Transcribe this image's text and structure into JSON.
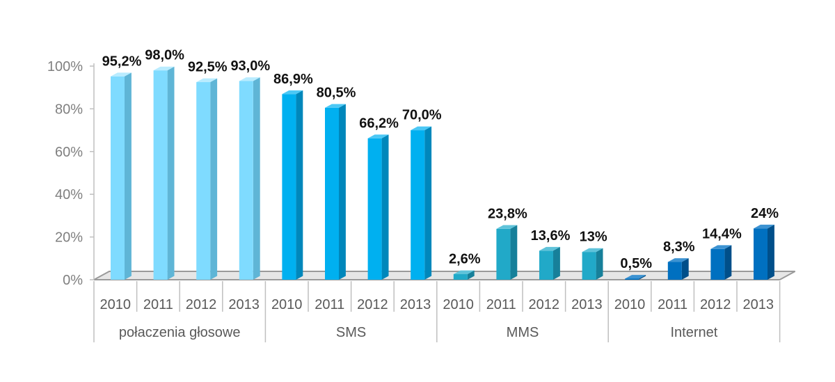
{
  "chart_data": {
    "type": "bar",
    "yticks": [
      "0%",
      "20%",
      "40%",
      "60%",
      "80%",
      "100%"
    ],
    "ylim": [
      0,
      100
    ],
    "groups": [
      {
        "name": "połaczenia głosowe",
        "color": "#7fdbff",
        "side_color": "#5fb5d6",
        "top_color": "#b9ecff",
        "bars": [
          {
            "year": "2010",
            "value": 95.2,
            "label": "95,2%"
          },
          {
            "year": "2011",
            "value": 98.0,
            "label": "98,0%"
          },
          {
            "year": "2012",
            "value": 92.5,
            "label": "92,5%"
          },
          {
            "year": "2013",
            "value": 93.0,
            "label": "93,0%"
          }
        ]
      },
      {
        "name": "SMS",
        "color": "#00b0f0",
        "side_color": "#0087bb",
        "top_color": "#4cc8f5",
        "bars": [
          {
            "year": "2010",
            "value": 86.9,
            "label": "86,9%"
          },
          {
            "year": "2011",
            "value": 80.5,
            "label": "80,5%"
          },
          {
            "year": "2012",
            "value": 66.2,
            "label": "66,2%"
          },
          {
            "year": "2013",
            "value": 70.0,
            "label": "70,0%"
          }
        ]
      },
      {
        "name": "MMS",
        "color": "#21a9c8",
        "side_color": "#17809a",
        "top_color": "#5fc3da",
        "bars": [
          {
            "year": "2010",
            "value": 2.6,
            "label": "2,6%"
          },
          {
            "year": "2011",
            "value": 23.8,
            "label": "23,8%"
          },
          {
            "year": "2012",
            "value": 13.6,
            "label": "13,6%"
          },
          {
            "year": "2013",
            "value": 13.0,
            "label": "13%"
          }
        ]
      },
      {
        "name": "Internet",
        "color": "#0070c0",
        "side_color": "#004f8a",
        "top_color": "#3d93d2",
        "bars": [
          {
            "year": "2010",
            "value": 0.5,
            "label": "0,5%"
          },
          {
            "year": "2011",
            "value": 8.3,
            "label": "8,3%"
          },
          {
            "year": "2012",
            "value": 14.4,
            "label": "14,4%"
          },
          {
            "year": "2013",
            "value": 24.0,
            "label": "24%"
          }
        ]
      }
    ]
  }
}
